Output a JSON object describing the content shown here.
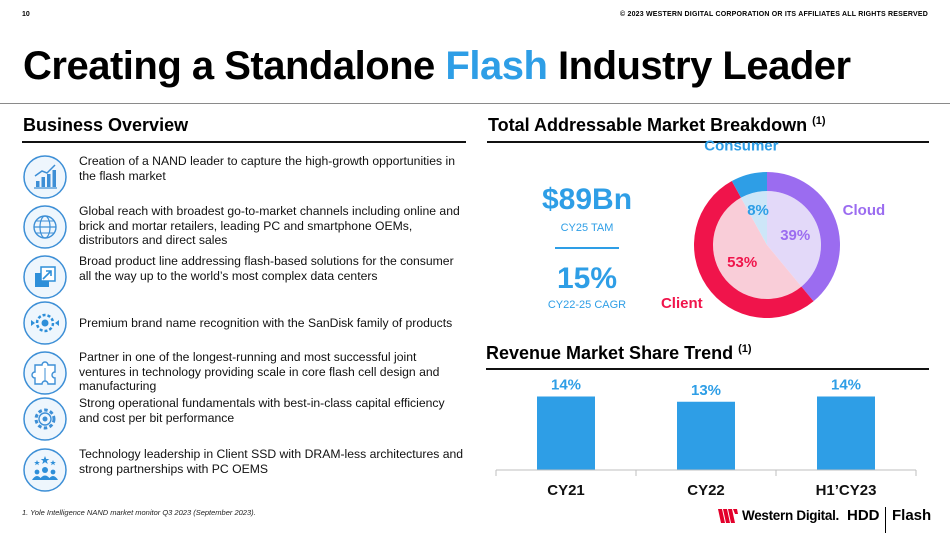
{
  "header": {
    "page_number": "10",
    "copyright": "© 2023 WESTERN DIGITAL CORPORATION OR ITS AFFILIATES  ALL RIGHTS RESERVED"
  },
  "title": {
    "part1": "Creating a Standalone ",
    "accent": "Flash",
    "part2": " Industry Leader",
    "accent_color": "#2e9ee6"
  },
  "business_overview": {
    "heading": "Business Overview",
    "items": [
      {
        "icon": "growth-chart-icon",
        "text": "Creation of a NAND leader to capture the high-growth opportunities in the flash market"
      },
      {
        "icon": "globe-icon",
        "text": "Global reach with broadest go-to-market channels including online and brick and mortar retailers, leading PC and smartphone OEMs, distributors and direct sales"
      },
      {
        "icon": "expand-arrow-icon",
        "text": "Broad product line addressing flash-based solutions for the consumer all the way up to the world’s most complex data centers"
      },
      {
        "icon": "brand-badge-icon",
        "text": "Premium brand name recognition with the SanDisk family of products"
      },
      {
        "icon": "puzzle-icon",
        "text": "Partner in one of the longest-running and most successful joint ventures in technology providing scale in core flash cell design and manufacturing"
      },
      {
        "icon": "gear-icon",
        "text": "Strong operational fundamentals with best-in-class capital efficiency and cost per bit performance"
      },
      {
        "icon": "team-stars-icon",
        "text": "Technology leadership in Client SSD with DRAM-less architectures and strong partnerships with PC OEMS"
      }
    ]
  },
  "footnote": "1.    Yole Intelligence NAND market monitor Q3 2023 (September 2023).",
  "tam": {
    "heading": "Total Addressable Market Breakdown",
    "heading_sup": "(1)",
    "value": "$89Bn",
    "value_label": "CY25 TAM",
    "cagr": "15%",
    "cagr_label": "CY22-25 CAGR"
  },
  "revenue": {
    "heading": "Revenue Market Share Trend",
    "heading_sup": "(1)"
  },
  "chart_data": [
    {
      "type": "pie",
      "title": "Total Addressable Market Breakdown",
      "categories": [
        "Cloud",
        "Client",
        "Consumer"
      ],
      "values": [
        39,
        53,
        8
      ],
      "value_labels": [
        "39%",
        "53%",
        "8%"
      ],
      "colors": [
        "#9b6cf0",
        "#f0144b",
        "#2e9ee6"
      ],
      "inner_colors": [
        "#e3d9f9",
        "#f9cdd8",
        "#cde6f8"
      ],
      "label_colors": [
        "#9b6cf0",
        "#f0144b",
        "#2e9ee6"
      ]
    },
    {
      "type": "bar",
      "title": "Revenue Market Share Trend",
      "categories": [
        "CY21",
        "CY22",
        "H1'CY23"
      ],
      "category_labels": [
        "CY21",
        "CY22",
        "H1’CY23"
      ],
      "values": [
        14,
        13,
        14
      ],
      "value_labels": [
        "14%",
        "13%",
        "14%"
      ],
      "ylim": [
        0,
        20
      ],
      "color": "#2e9ee6",
      "label_color": "#2e9ee6",
      "grid": false
    }
  ],
  "brand": {
    "company": "Western Digital.",
    "hdd": "HDD",
    "flash": "Flash",
    "logo_color": "#e3002b"
  }
}
